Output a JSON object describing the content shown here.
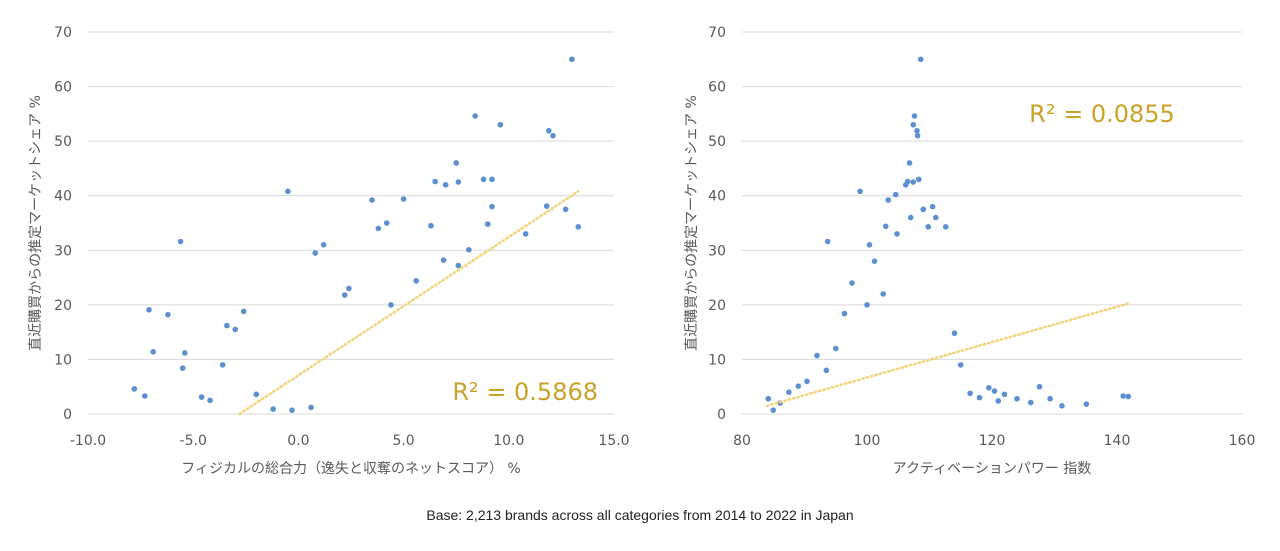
{
  "chart_data": [
    {
      "type": "scatter",
      "xlabel": "フィジカルの総合力（逸失と収奪のネットスコア） %",
      "ylabel": "直近購買からの推定マーケットシェア %",
      "xlim": [
        -10.0,
        15.0
      ],
      "ylim": [
        0,
        70
      ],
      "xticks": [
        "-10.0",
        "-5.0",
        "0.0",
        "5.0",
        "10.0",
        "15.0"
      ],
      "yticks": [
        "0",
        "10",
        "20",
        "30",
        "40",
        "50",
        "60",
        "70"
      ],
      "grid": "horizontal",
      "marker_color": "#5b8fd0",
      "trendline": {
        "style": "dotted",
        "color": "#f2d47c",
        "from": [
          -2.8,
          0.0
        ],
        "to": [
          13.3,
          40.8
        ]
      },
      "r2_label": "R² = 0.5868",
      "r2_color": "#c9a227",
      "points": [
        [
          13.0,
          65.0
        ],
        [
          8.4,
          54.6
        ],
        [
          9.6,
          53.0
        ],
        [
          11.9,
          51.9
        ],
        [
          12.1,
          51.0
        ],
        [
          7.5,
          46.0
        ],
        [
          6.5,
          42.6
        ],
        [
          7.0,
          42.0
        ],
        [
          7.6,
          42.5
        ],
        [
          8.8,
          43.0
        ],
        [
          9.2,
          43.0
        ],
        [
          -0.5,
          40.8
        ],
        [
          3.5,
          39.2
        ],
        [
          5.0,
          39.4
        ],
        [
          12.7,
          37.5
        ],
        [
          13.3,
          34.3
        ],
        [
          11.8,
          38.1
        ],
        [
          -5.6,
          31.6
        ],
        [
          1.2,
          31.0
        ],
        [
          0.8,
          29.5
        ],
        [
          3.8,
          34.0
        ],
        [
          4.2,
          35.0
        ],
        [
          6.3,
          34.5
        ],
        [
          9.2,
          38.0
        ],
        [
          10.8,
          33.0
        ],
        [
          -7.8,
          4.6
        ],
        [
          -7.3,
          3.3
        ],
        [
          -7.1,
          19.1
        ],
        [
          -6.9,
          11.4
        ],
        [
          -6.2,
          18.2
        ],
        [
          -5.4,
          11.2
        ],
        [
          -5.5,
          8.4
        ],
        [
          -4.6,
          3.1
        ],
        [
          -4.2,
          2.5
        ],
        [
          -3.6,
          9.0
        ],
        [
          -3.4,
          16.2
        ],
        [
          -3.0,
          15.5
        ],
        [
          -2.6,
          18.8
        ],
        [
          2.4,
          23.0
        ],
        [
          2.2,
          21.8
        ],
        [
          4.4,
          20.0
        ],
        [
          5.6,
          24.4
        ],
        [
          6.9,
          28.2
        ],
        [
          7.6,
          27.2
        ],
        [
          8.1,
          30.1
        ],
        [
          9.0,
          34.8
        ],
        [
          -1.2,
          0.9
        ],
        [
          -0.3,
          0.7
        ],
        [
          0.6,
          1.2
        ],
        [
          -2.0,
          3.6
        ]
      ]
    },
    {
      "type": "scatter",
      "xlabel": "アクティベーションパワー 指数",
      "ylabel": "直近購買からの推定マーケットシェア %",
      "xlim": [
        80,
        160
      ],
      "ylim": [
        0,
        70
      ],
      "xticks": [
        "80",
        "100",
        "120",
        "140",
        "160"
      ],
      "yticks": [
        "0",
        "10",
        "20",
        "30",
        "40",
        "50",
        "60",
        "70"
      ],
      "grid": "horizontal",
      "marker_color": "#5b8fd0",
      "trendline": {
        "style": "dotted",
        "color": "#f2d47c",
        "from": [
          84,
          1.5
        ],
        "to": [
          142,
          20.3
        ]
      },
      "r2_label": "R² = 0.0855",
      "r2_color": "#c9a227",
      "points": [
        [
          108.6,
          65.0
        ],
        [
          107.6,
          54.6
        ],
        [
          107.4,
          53.0
        ],
        [
          108.0,
          51.9
        ],
        [
          108.1,
          51.0
        ],
        [
          106.8,
          46.0
        ],
        [
          106.5,
          42.6
        ],
        [
          106.2,
          42.0
        ],
        [
          107.4,
          42.5
        ],
        [
          108.3,
          43.0
        ],
        [
          98.9,
          40.8
        ],
        [
          103.4,
          39.2
        ],
        [
          104.6,
          40.2
        ],
        [
          109.0,
          37.5
        ],
        [
          110.5,
          38.0
        ],
        [
          109.8,
          34.3
        ],
        [
          111.0,
          36.0
        ],
        [
          112.6,
          34.3
        ],
        [
          93.7,
          31.6
        ],
        [
          100.4,
          31.0
        ],
        [
          103.0,
          34.4
        ],
        [
          104.8,
          33.0
        ],
        [
          107.0,
          36.0
        ],
        [
          85.0,
          0.7
        ],
        [
          84.2,
          2.8
        ],
        [
          86.1,
          2.0
        ],
        [
          87.5,
          4.0
        ],
        [
          89.0,
          5.1
        ],
        [
          90.4,
          6.0
        ],
        [
          92.0,
          10.7
        ],
        [
          93.5,
          8.0
        ],
        [
          95.0,
          12.0
        ],
        [
          96.4,
          18.4
        ],
        [
          97.6,
          24.0
        ],
        [
          100.0,
          20.0
        ],
        [
          101.2,
          28.0
        ],
        [
          102.6,
          22.0
        ],
        [
          114.0,
          14.8
        ],
        [
          115.0,
          9.0
        ],
        [
          116.5,
          3.8
        ],
        [
          118.0,
          3.0
        ],
        [
          119.5,
          4.8
        ],
        [
          120.4,
          4.2
        ],
        [
          121.0,
          2.4
        ],
        [
          122.0,
          3.6
        ],
        [
          124.0,
          2.8
        ],
        [
          126.2,
          2.1
        ],
        [
          127.6,
          5.0
        ],
        [
          129.3,
          2.8
        ],
        [
          131.2,
          1.5
        ],
        [
          135.1,
          1.8
        ],
        [
          141.0,
          3.3
        ],
        [
          141.8,
          3.2
        ]
      ]
    }
  ],
  "caption": "Base: 2,213 brands across all categories from 2014 to 2022 in Japan"
}
